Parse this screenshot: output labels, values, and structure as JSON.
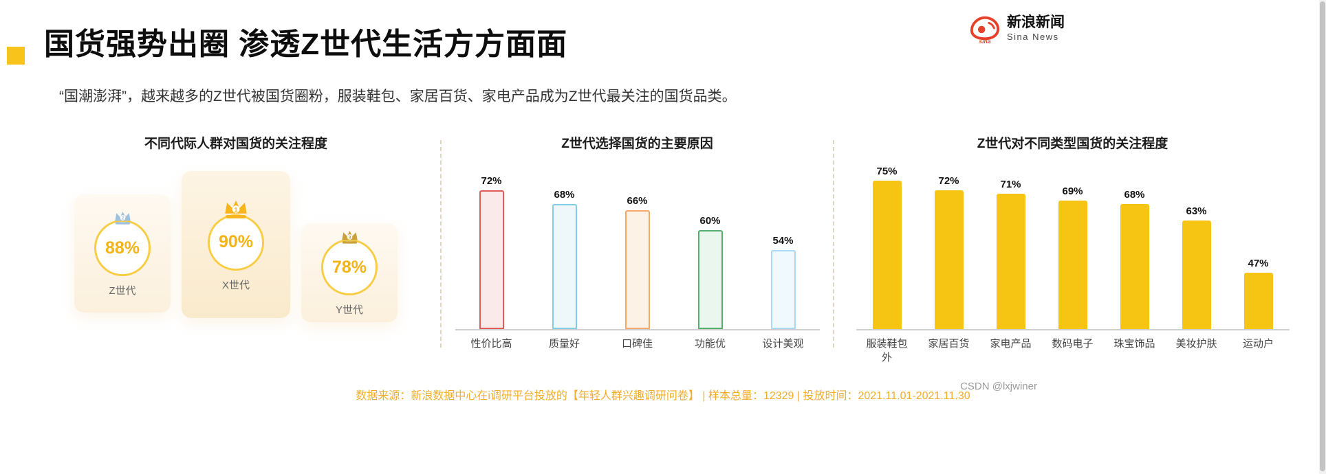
{
  "page": {
    "title": "国货强势出圈 渗透Z世代生活方方面面",
    "subtitle": "“国潮澎湃”，越来越多的Z世代被国货圈粉，服装鞋包、家居百货、家电产品成为Z世代最关注的国货品类。",
    "accent_color": "#F8C41C",
    "background_color": "#FFFFFF"
  },
  "brand": {
    "logo_icon": "sina-eye-icon",
    "name_cn": "新浪新闻",
    "name_en": "Sina News",
    "logo_color": "#E6412A"
  },
  "chart_data": [
    {
      "type": "bar",
      "display": "circle-badges",
      "title": "不同代际人群对国货的关注程度",
      "categories": [
        "Z世代",
        "X世代",
        "Y世代"
      ],
      "values": [
        88,
        90,
        78
      ],
      "unit": "%",
      "badges": [
        {
          "label": "Z世代",
          "display": "88%",
          "rank": "2",
          "crown_color": "#9FC1DE"
        },
        {
          "label": "X世代",
          "display": "90%",
          "rank": "1",
          "crown_color": "#F6B41D"
        },
        {
          "label": "Y世代",
          "display": "78%",
          "rank": "3",
          "crown_color": "#C9A23B"
        }
      ],
      "value_color": "#F2B416",
      "circle_border_color": "#F7CD45"
    },
    {
      "type": "bar",
      "style": "outline",
      "title": "Z世代选择国货的主要原因",
      "categories": [
        "性价比高",
        "质量好",
        "口碑佳",
        "功能优",
        "设计美观"
      ],
      "values": [
        72,
        68,
        66,
        60,
        54
      ],
      "unit": "%",
      "ylim": [
        0,
        80
      ],
      "grid": false,
      "bar_colors": [
        "#E25B5B",
        "#85CBE4",
        "#F2A96B",
        "#52B26C",
        "#A9D8F0"
      ],
      "bar_fills": [
        "#FBEAEA",
        "#EEF8FB",
        "#FDF2E6",
        "#EBF7EE",
        "#F0F9FE"
      ]
    },
    {
      "type": "bar",
      "style": "solid",
      "title": "Z世代对不同类型国货的关注程度",
      "categories": [
        "服装鞋包\n外",
        "家居百货",
        "家电产品",
        "数码电子",
        "珠宝饰品",
        "美妆护肤",
        "运动户"
      ],
      "values": [
        75,
        72,
        71,
        69,
        68,
        63,
        47
      ],
      "unit": "%",
      "ylim": [
        0,
        80
      ],
      "grid": false,
      "bar_color": "#F6C514"
    }
  ],
  "footer": {
    "source": "数据来源：新浪数据中心在i调研平台投放的【年轻人群兴趣调研问卷】 | 样本总量：12329 | 投放时间：2021.11.01-2021.11.30",
    "source_color": "#F2AC2B",
    "watermark": "CSDN @lxjwiner"
  }
}
